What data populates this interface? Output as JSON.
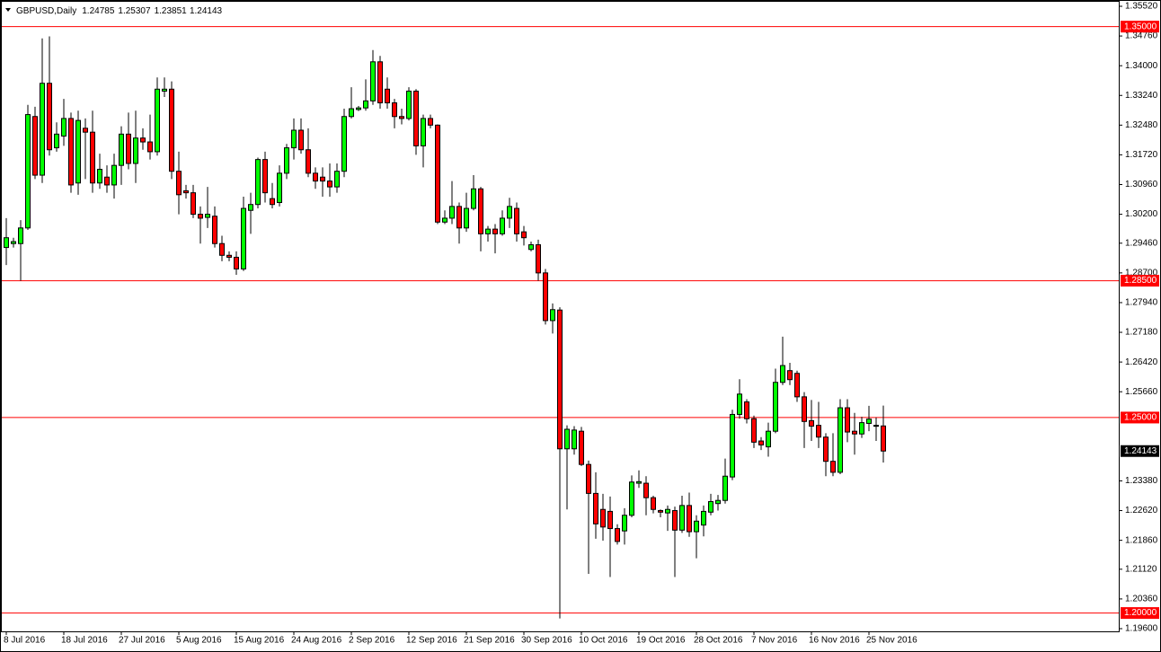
{
  "chart_data": {
    "type": "candlestick",
    "title": "GBPUSD,Daily",
    "header_values": [
      1.24785,
      1.25307,
      1.23851,
      1.24143
    ],
    "categories": [
      "8 Jul 2016",
      null,
      null,
      null,
      null,
      null,
      null,
      null,
      "18 Jul 2016",
      null,
      null,
      null,
      null,
      null,
      null,
      null,
      "27 Jul 2016",
      null,
      null,
      null,
      null,
      null,
      null,
      null,
      "5 Aug 2016",
      null,
      null,
      null,
      null,
      null,
      null,
      null,
      "15 Aug 2016",
      null,
      null,
      null,
      null,
      null,
      null,
      null,
      "24 Aug 2016",
      null,
      null,
      null,
      null,
      null,
      null,
      null,
      "2 Sep 2016",
      null,
      null,
      null,
      null,
      null,
      null,
      null,
      "12 Sep 2016",
      null,
      null,
      null,
      null,
      null,
      null,
      null,
      "21 Sep 2016",
      null,
      null,
      null,
      null,
      null,
      null,
      null,
      "30 Sep 2016",
      null,
      null,
      null,
      null,
      null,
      null,
      null,
      "10 Oct 2016",
      null,
      null,
      null,
      null,
      null,
      null,
      null,
      "19 Oct 2016",
      null,
      null,
      null,
      null,
      null,
      null,
      null,
      "28 Oct 2016",
      null,
      null,
      null,
      null,
      null,
      null,
      null,
      "7 Nov 2016",
      null,
      null,
      null,
      null,
      null,
      null,
      null,
      "16 Nov 2016",
      null,
      null,
      null,
      null,
      null,
      null,
      null,
      "25 Nov 2016",
      null,
      null
    ],
    "open": [
      1.2935,
      1.2945,
      1.2945,
      1.2985,
      1.327,
      1.312,
      1.3355,
      1.319,
      1.322,
      1.3265,
      1.31,
      1.324,
      1.323,
      1.31,
      1.3115,
      1.3095,
      1.3145,
      1.3225,
      1.315,
      1.3215,
      1.3205,
      1.318,
      1.3335,
      1.334,
      1.313,
      1.308,
      1.3075,
      1.302,
      1.3012,
      1.3015,
      1.2945,
      1.2915,
      1.291,
      1.288,
      1.303,
      1.3045,
      1.316,
      1.306,
      1.305,
      1.3125,
      1.319,
      1.3235,
      1.3185,
      1.3125,
      1.3115,
      1.3105,
      1.309,
      1.313,
      1.327,
      1.3288,
      1.3292,
      1.331,
      1.341,
      1.334,
      1.3305,
      1.327,
      1.3265,
      1.3335,
      1.3195,
      1.3265,
      1.3248,
      1.3,
      1.301,
      1.304,
      1.2985,
      1.3035,
      1.3085,
      1.297,
      1.2982,
      1.297,
      1.301,
      1.3035,
      1.2975,
      1.293,
      1.2942,
      1.287,
      1.2748,
      1.2775,
      1.242,
      1.242,
      1.2465,
      1.238,
      1.2306,
      1.2265,
      1.226,
      1.2216,
      1.221,
      1.225,
      1.2332,
      1.2332,
      1.2295,
      1.2262,
      1.2256,
      1.2262,
      1.2212,
      1.2275,
      1.2208,
      1.2225,
      1.2258,
      1.228,
      1.2288,
      1.2348,
      1.2508,
      1.254,
      1.2497,
      1.244,
      1.2425,
      1.2465,
      1.259,
      1.262,
      1.2613,
      1.2553,
      1.2492,
      1.248,
      1.245,
      1.2388,
      1.236,
      1.2525,
      1.2465,
      1.2458,
      1.2485,
      1.2479,
      1.24785
    ],
    "high": [
      1.301,
      1.296,
      1.3005,
      1.33,
      1.3295,
      1.347,
      1.3475,
      1.3255,
      1.3315,
      1.328,
      1.3285,
      1.3265,
      1.3285,
      1.3175,
      1.3145,
      1.3175,
      1.3245,
      1.328,
      1.3285,
      1.324,
      1.3275,
      1.337,
      1.337,
      1.336,
      1.318,
      1.3095,
      1.3095,
      1.304,
      1.309,
      1.304,
      1.2965,
      1.2925,
      1.2925,
      1.3065,
      1.3075,
      1.3165,
      1.318,
      1.31,
      1.3145,
      1.32,
      1.3265,
      1.3265,
      1.324,
      1.314,
      1.314,
      1.315,
      1.315,
      1.329,
      1.3345,
      1.3297,
      1.3365,
      1.344,
      1.3425,
      1.337,
      1.3315,
      1.329,
      1.3345,
      1.334,
      1.3275,
      1.3275,
      1.325,
      1.303,
      1.3105,
      1.305,
      1.3075,
      1.312,
      1.309,
      1.299,
      1.2995,
      1.303,
      1.3062,
      1.305,
      1.299,
      1.295,
      1.2955,
      1.288,
      1.2792,
      1.2782,
      1.248,
      1.2478,
      1.2476,
      1.239,
      1.236,
      1.2305,
      1.2298,
      1.2227,
      1.2268,
      1.2352,
      1.2365,
      1.235,
      1.23,
      1.2265,
      1.2275,
      1.2272,
      1.23,
      1.2308,
      1.225,
      1.2275,
      1.2305,
      1.2302,
      1.2395,
      1.252,
      1.2598,
      1.2547,
      1.2505,
      1.245,
      1.2487,
      1.2625,
      1.2707,
      1.264,
      1.262,
      1.2565,
      1.2545,
      1.254,
      1.246,
      1.246,
      1.2547,
      1.2547,
      1.2512,
      1.2502,
      1.253,
      1.25,
      1.25307
    ],
    "low": [
      1.289,
      1.2935,
      1.285,
      1.298,
      1.311,
      1.31,
      1.317,
      1.318,
      1.3195,
      1.3075,
      1.307,
      1.311,
      1.3075,
      1.3085,
      1.3075,
      1.306,
      1.3095,
      1.3135,
      1.31,
      1.3185,
      1.316,
      1.317,
      1.332,
      1.311,
      1.302,
      1.306,
      1.301,
      1.2945,
      1.2985,
      1.2935,
      1.29,
      1.29,
      1.2865,
      1.2875,
      1.297,
      1.3035,
      1.305,
      1.3035,
      1.304,
      1.311,
      1.316,
      1.3175,
      1.3115,
      1.3085,
      1.3065,
      1.3065,
      1.3075,
      1.3115,
      1.3265,
      1.3284,
      1.3285,
      1.33,
      1.329,
      1.329,
      1.324,
      1.325,
      1.326,
      1.3172,
      1.314,
      1.324,
      1.2995,
      1.2995,
      1.2995,
      1.2945,
      1.2975,
      1.303,
      1.2925,
      1.295,
      1.292,
      1.2965,
      1.2985,
      1.295,
      1.294,
      1.2925,
      1.285,
      1.2738,
      1.2715,
      1.1986,
      1.2265,
      1.2405,
      1.2376,
      1.21,
      1.219,
      1.2185,
      1.2092,
      1.2175,
      1.2175,
      1.2245,
      1.232,
      1.225,
      1.2255,
      1.2245,
      1.221,
      1.2092,
      1.2205,
      1.2195,
      1.214,
      1.2196,
      1.225,
      1.2262,
      1.228,
      1.234,
      1.2497,
      1.2485,
      1.2422,
      1.2417,
      1.24,
      1.246,
      1.2583,
      1.2583,
      1.254,
      1.2422,
      1.244,
      1.2422,
      1.235,
      1.235,
      1.2355,
      1.2437,
      1.2405,
      1.2448,
      1.2465,
      1.244,
      1.23851
    ],
    "close": [
      1.296,
      1.295,
      1.2985,
      1.3275,
      1.312,
      1.3355,
      1.3185,
      1.3225,
      1.3265,
      1.3095,
      1.326,
      1.323,
      1.31,
      1.3135,
      1.3095,
      1.3145,
      1.3225,
      1.315,
      1.3215,
      1.3205,
      1.318,
      1.334,
      1.334,
      1.313,
      1.307,
      1.3075,
      1.302,
      1.301,
      1.302,
      1.2945,
      1.2915,
      1.291,
      1.288,
      1.3035,
      1.3045,
      1.316,
      1.3075,
      1.3045,
      1.3125,
      1.319,
      1.3235,
      1.3185,
      1.3125,
      1.3105,
      1.3105,
      1.309,
      1.313,
      1.327,
      1.329,
      1.3292,
      1.331,
      1.341,
      1.3305,
      1.3305,
      1.327,
      1.3265,
      1.3335,
      1.3195,
      1.3265,
      1.3248,
      1.3,
      1.301,
      1.304,
      1.2985,
      1.3035,
      1.3085,
      1.297,
      1.2982,
      1.297,
      1.301,
      1.304,
      1.297,
      1.296,
      1.2942,
      1.287,
      1.2748,
      1.2776,
      1.242,
      1.247,
      1.2468,
      1.238,
      1.2306,
      1.2228,
      1.222,
      1.2216,
      1.2183,
      1.225,
      1.2335,
      1.2336,
      1.2295,
      1.2265,
      1.2258,
      1.2265,
      1.2212,
      1.2275,
      1.2208,
      1.2235,
      1.226,
      1.2285,
      1.2288,
      1.235,
      1.2508,
      1.256,
      1.2497,
      1.2437,
      1.243,
      1.2465,
      1.259,
      1.2633,
      1.2597,
      1.2553,
      1.249,
      1.2478,
      1.245,
      1.2388,
      1.236,
      1.2525,
      1.2463,
      1.2458,
      1.2487,
      1.2496,
      1.248,
      1.24143
    ],
    "up_color": "#00ff00",
    "down_color": "#ff0000",
    "outline_color": "#000000",
    "ylim": [
      1.196,
      1.3552
    ],
    "yticks": [
      {
        "value": 1.3552,
        "label": "1.35520"
      },
      {
        "value": 1.3476,
        "label": "1.34760"
      },
      {
        "value": 1.34,
        "label": "1.34000"
      },
      {
        "value": 1.3324,
        "label": "1.33240"
      },
      {
        "value": 1.3248,
        "label": "1.32480"
      },
      {
        "value": 1.3172,
        "label": "1.31720"
      },
      {
        "value": 1.3096,
        "label": "1.30960"
      },
      {
        "value": 1.302,
        "label": "1.30200"
      },
      {
        "value": 1.2946,
        "label": "1.29460"
      },
      {
        "value": 1.287,
        "label": "1.28700"
      },
      {
        "value": 1.2794,
        "label": "1.27940"
      },
      {
        "value": 1.2718,
        "label": "1.27180"
      },
      {
        "value": 1.2642,
        "label": "1.26420"
      },
      {
        "value": 1.2566,
        "label": "1.25660"
      },
      {
        "value": 1.2338,
        "label": "1.23380"
      },
      {
        "value": 1.2262,
        "label": "1.22620"
      },
      {
        "value": 1.2186,
        "label": "1.21860"
      },
      {
        "value": 1.2112,
        "label": "1.21120"
      },
      {
        "value": 1.2036,
        "label": "1.20360"
      },
      {
        "value": 1.196,
        "label": "1.19600"
      }
    ],
    "hlines": [
      {
        "value": 1.35,
        "label": "1.35000"
      },
      {
        "value": 1.285,
        "label": "1.28500"
      },
      {
        "value": 1.25,
        "label": "1.25000"
      },
      {
        "value": 1.2,
        "label": "1.20000"
      }
    ],
    "hline_color": "#ff0000",
    "last_price": 1.24143,
    "grid": false
  }
}
